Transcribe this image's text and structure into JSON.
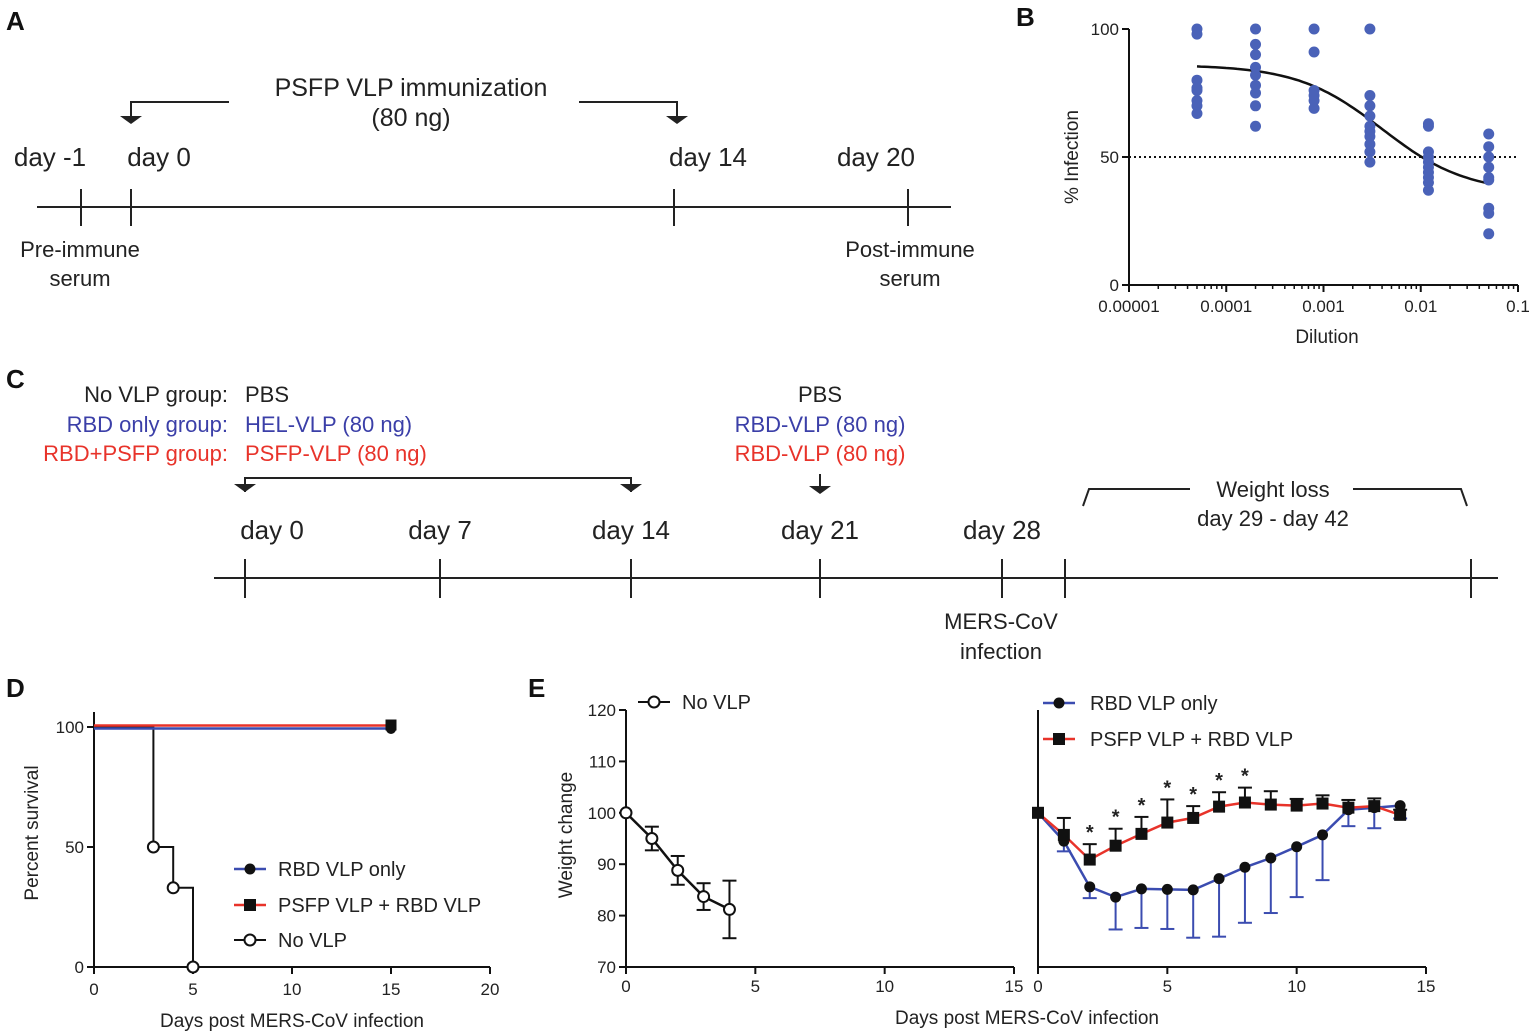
{
  "panel_a": {
    "label": "A",
    "immunization_line1": "PSFP VLP immunization",
    "immunization_line2": "(80 ng)",
    "days": [
      "day -1",
      "day 0",
      "day 14",
      "day 20"
    ],
    "pre_line1": "Pre-immune",
    "pre_line2": "serum",
    "post_line1": "Post-immune",
    "post_line2": "serum"
  },
  "panel_c": {
    "label": "C",
    "groups": [
      {
        "name": "No VLP group:",
        "prime": "PBS",
        "boost": "PBS",
        "color": "#222222"
      },
      {
        "name": "RBD only group:",
        "prime": "HEL-VLP (80 ng)",
        "boost": "RBD-VLP (80 ng)",
        "color": "#3b3fa8"
      },
      {
        "name": "RBD+PSFP group:",
        "prime": "PSFP-VLP (80 ng)",
        "boost": "RBD-VLP (80 ng)",
        "color": "#e8332a"
      }
    ],
    "days": [
      "day 0",
      "day 7",
      "day 14",
      "day 21",
      "day 28"
    ],
    "weight_loss_line1": "Weight loss",
    "weight_loss_line2": "day 29 - day 42",
    "infection_line1": "MERS-CoV",
    "infection_line2": "infection"
  },
  "colors": {
    "blue": "#3b4cb0",
    "red": "#e8332a",
    "black": "#111111",
    "dot": "#4a62b8"
  },
  "chart_data": [
    {
      "panel": "B",
      "type": "scatter",
      "xlabel": "Dilution",
      "ylabel": "% Infection",
      "xscale": "log",
      "xlim": [
        1e-05,
        0.1
      ],
      "ylim": [
        0,
        100
      ],
      "xticks": [
        "0.00001",
        "0.0001",
        "0.001",
        "0.01",
        "0.1"
      ],
      "yticks": [
        "0",
        "50",
        "100"
      ],
      "reference_line": 50,
      "points": [
        {
          "x": 5e-05,
          "y": [
            100,
            98,
            80,
            77,
            76,
            72,
            70,
            67
          ]
        },
        {
          "x": 0.0002,
          "y": [
            100,
            94,
            90,
            85,
            82,
            78,
            75,
            70,
            62
          ]
        },
        {
          "x": 0.0008,
          "y": [
            100,
            91,
            76,
            74,
            72,
            69
          ]
        },
        {
          "x": 0.003,
          "y": [
            100,
            74,
            70,
            66,
            62,
            60,
            58,
            55,
            52,
            48
          ]
        },
        {
          "x": 0.012,
          "y": [
            63,
            62,
            52,
            50,
            48,
            46,
            44,
            42,
            40,
            37
          ]
        },
        {
          "x": 0.05,
          "y": [
            59,
            54,
            50,
            46,
            42,
            41,
            30,
            28,
            20
          ]
        }
      ],
      "fit": {
        "top": 86,
        "bottom": 36,
        "ic50_log10": -2.4,
        "hill": 1.0
      }
    },
    {
      "panel": "D",
      "type": "line",
      "xlabel": "Days post MERS-CoV infection",
      "ylabel": "Percent survival",
      "xlim": [
        0,
        20
      ],
      "ylim": [
        0,
        100
      ],
      "xticks": [
        "0",
        "5",
        "10",
        "15",
        "20"
      ],
      "yticks": [
        "0",
        "50",
        "100"
      ],
      "series": [
        {
          "name": "RBD VLP only",
          "color": "#3b4cb0",
          "marker": "filled-circle",
          "x": [
            0,
            15
          ],
          "y": [
            100,
            100
          ]
        },
        {
          "name": "PSFP VLP + RBD VLP",
          "color": "#e8332a",
          "marker": "filled-square",
          "x": [
            0,
            15
          ],
          "y": [
            100,
            100
          ]
        },
        {
          "name": "No VLP",
          "color": "#111111",
          "marker": "open-circle",
          "steps": true,
          "x": [
            0,
            3,
            4,
            5
          ],
          "y": [
            100,
            50,
            33,
            0
          ]
        }
      ]
    },
    {
      "panel": "E-left",
      "type": "line",
      "xlabel": "Days post MERS-CoV infection",
      "ylabel": "Weight change",
      "xlim": [
        0,
        15
      ],
      "ylim": [
        70,
        120
      ],
      "xticks": [
        "0",
        "5",
        "10",
        "15"
      ],
      "yticks": [
        "70",
        "80",
        "90",
        "100",
        "110",
        "120"
      ],
      "series": [
        {
          "name": "No VLP",
          "color": "#111111",
          "marker": "open-circle",
          "x": [
            0,
            1,
            2,
            3,
            4
          ],
          "y": [
            100,
            95,
            88.8,
            83.7,
            81.2
          ],
          "err": [
            0,
            2.3,
            2.8,
            2.6,
            5.6
          ]
        }
      ]
    },
    {
      "panel": "E-right",
      "type": "line",
      "xlim": [
        0,
        15
      ],
      "ylim": [
        70,
        120
      ],
      "xticks": [
        "0",
        "5",
        "10",
        "15"
      ],
      "series": [
        {
          "name": "RBD VLP only",
          "color": "#3b4cb0",
          "marker": "filled-circle",
          "x": [
            0,
            1,
            2,
            3,
            4,
            5,
            6,
            7,
            8,
            9,
            10,
            11,
            12,
            13,
            14
          ],
          "y": [
            100,
            94.5,
            85.6,
            83.6,
            85.2,
            85.1,
            85,
            87.2,
            89.4,
            91.2,
            93.4,
            95.7,
            100.6,
            101,
            101.4
          ],
          "err": [
            0,
            2,
            2.2,
            6.3,
            7.6,
            7.7,
            9.3,
            11.3,
            10.8,
            10.7,
            9.8,
            8.8,
            3.2,
            4,
            2.5
          ]
        },
        {
          "name": "PSFP VLP + RBD VLP",
          "color": "#e8332a",
          "marker": "filled-square",
          "x": [
            0,
            1,
            2,
            3,
            4,
            5,
            6,
            7,
            8,
            9,
            10,
            11,
            12,
            13,
            14
          ],
          "y": [
            100,
            95.7,
            90.9,
            93.6,
            95.9,
            98.1,
            99,
            101.2,
            102,
            101.6,
            101.4,
            101.8,
            101,
            101.3,
            99.6
          ],
          "err": [
            0,
            3.3,
            3,
            3.3,
            3.3,
            4.5,
            2.3,
            2.8,
            2.9,
            2.6,
            1.3,
            1.6,
            1.5,
            1.5,
            1
          ],
          "significant": [
            2,
            3,
            4,
            5,
            6,
            7,
            8
          ],
          "sig_mark": "*"
        }
      ]
    }
  ],
  "panel_b_label": "B",
  "panel_d_label": "D",
  "panel_e_label": "E"
}
